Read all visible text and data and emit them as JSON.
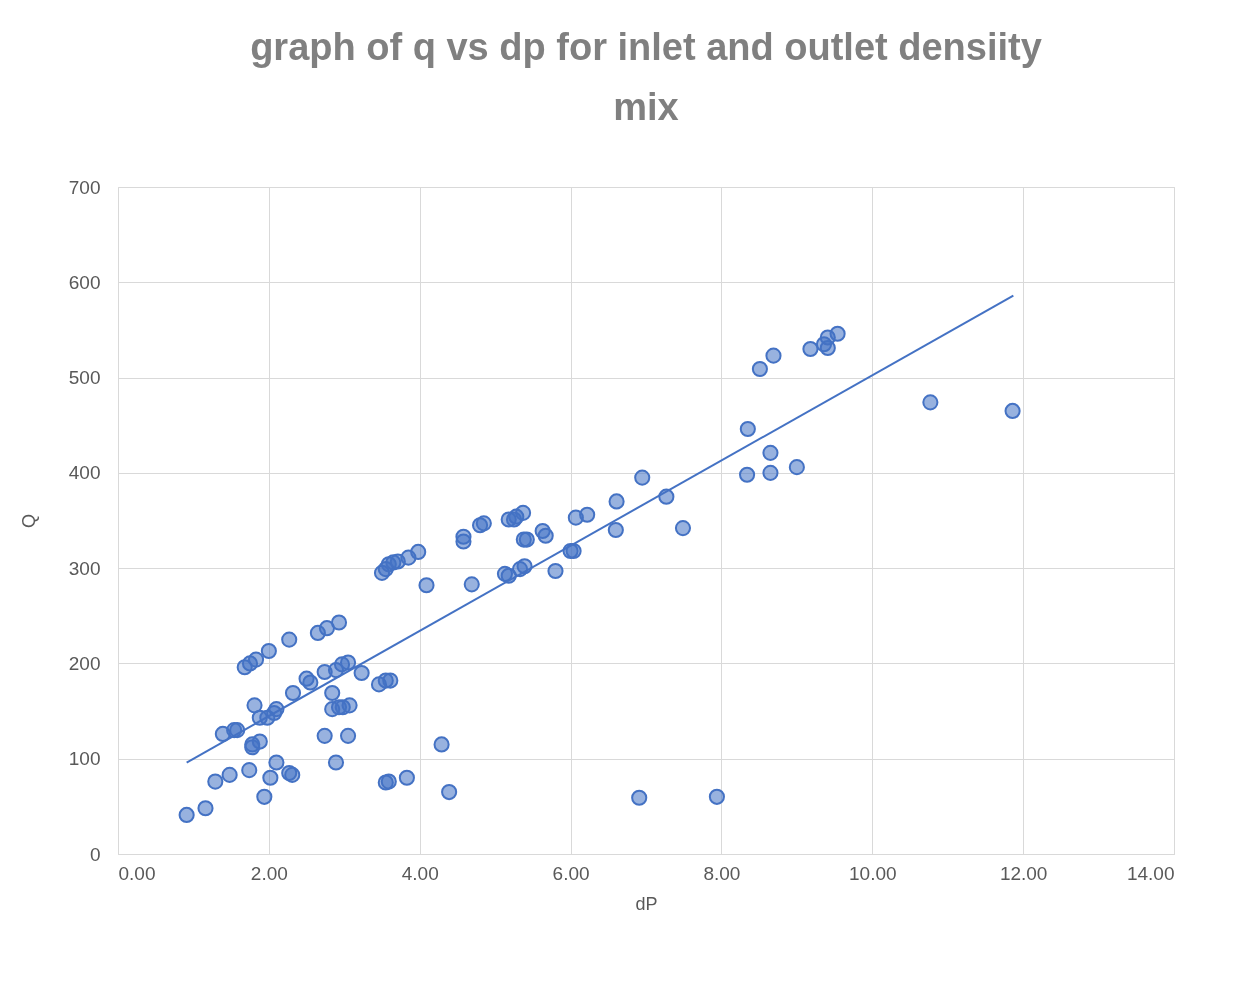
{
  "chart_data": {
    "type": "scatter",
    "title": "graph of q vs dp for inlet and outlet densiity mix",
    "xlabel": "dP",
    "ylabel": "Q",
    "xlim": [
      0,
      14
    ],
    "ylim": [
      0,
      700
    ],
    "xticks": [
      {
        "value": 0,
        "label": "0.00"
      },
      {
        "value": 2,
        "label": "2.00"
      },
      {
        "value": 4,
        "label": "4.00"
      },
      {
        "value": 6,
        "label": "6.00"
      },
      {
        "value": 8,
        "label": "8.00"
      },
      {
        "value": 10,
        "label": "10.00"
      },
      {
        "value": 12,
        "label": "12.00"
      },
      {
        "value": 14,
        "label": "14.00"
      }
    ],
    "yticks": [
      0,
      100,
      200,
      300,
      400,
      500,
      600,
      700
    ],
    "grid": true,
    "marker": "circle",
    "series": [
      {
        "color": "#4472c4",
        "x": [
          0.91,
          1.16,
          1.29,
          1.48,
          1.39,
          1.54,
          1.58,
          1.68,
          1.75,
          1.83,
          2.0,
          2.27,
          1.74,
          1.78,
          1.78,
          1.88,
          1.81,
          1.88,
          1.98,
          2.07,
          2.1,
          1.94,
          2.02,
          2.1,
          2.27,
          2.31,
          2.32,
          2.5,
          2.55,
          2.65,
          2.77,
          2.93,
          2.74,
          2.89,
          2.97,
          3.05,
          2.84,
          2.84,
          2.93,
          2.98,
          3.07,
          2.74,
          3.05,
          2.89,
          3.23,
          3.46,
          3.55,
          3.61,
          3.5,
          3.55,
          3.59,
          3.65,
          3.71,
          3.85,
          3.98,
          4.09,
          3.55,
          3.59,
          3.83,
          4.29,
          4.39,
          4.58,
          4.58,
          4.69,
          4.8,
          4.85,
          5.13,
          5.18,
          5.18,
          5.25,
          5.28,
          5.37,
          5.33,
          5.39,
          5.38,
          5.42,
          5.63,
          5.67,
          5.8,
          6.0,
          6.04,
          6.07,
          6.22,
          6.6,
          6.61,
          6.95,
          6.91,
          7.27,
          7.49,
          7.94,
          8.34,
          8.35,
          8.51,
          8.69,
          8.65,
          8.65,
          9.0,
          9.18,
          9.36,
          9.41,
          9.41,
          9.54,
          10.77,
          11.86
        ],
        "values": [
          41,
          48,
          76,
          83,
          126,
          130,
          130,
          196,
          200,
          204,
          213,
          225,
          88,
          115,
          112,
          118,
          156,
          143,
          143,
          148,
          152,
          60,
          80,
          96,
          85,
          83,
          169,
          184,
          180,
          232,
          237,
          243,
          191,
          193,
          199,
          201,
          169,
          152,
          154,
          154,
          156,
          124,
          124,
          96,
          190,
          178,
          182,
          182,
          295,
          299,
          304,
          306,
          307,
          311,
          317,
          282,
          75,
          76,
          80,
          115,
          65,
          333,
          328,
          283,
          345,
          347,
          294,
          292,
          351,
          351,
          354,
          358,
          299,
          302,
          330,
          330,
          339,
          334,
          297,
          318,
          318,
          353,
          356,
          340,
          370,
          395,
          59,
          375,
          342,
          60,
          398,
          446,
          509,
          523,
          421,
          400,
          406,
          530,
          535,
          531,
          542,
          546,
          474,
          465
        ]
      },
      {
        "type": "line",
        "color": "#4472c4",
        "line_style": "solid",
        "marker": "none",
        "x": [
          0.91,
          11.87
        ],
        "values": [
          96,
          586
        ]
      }
    ]
  }
}
